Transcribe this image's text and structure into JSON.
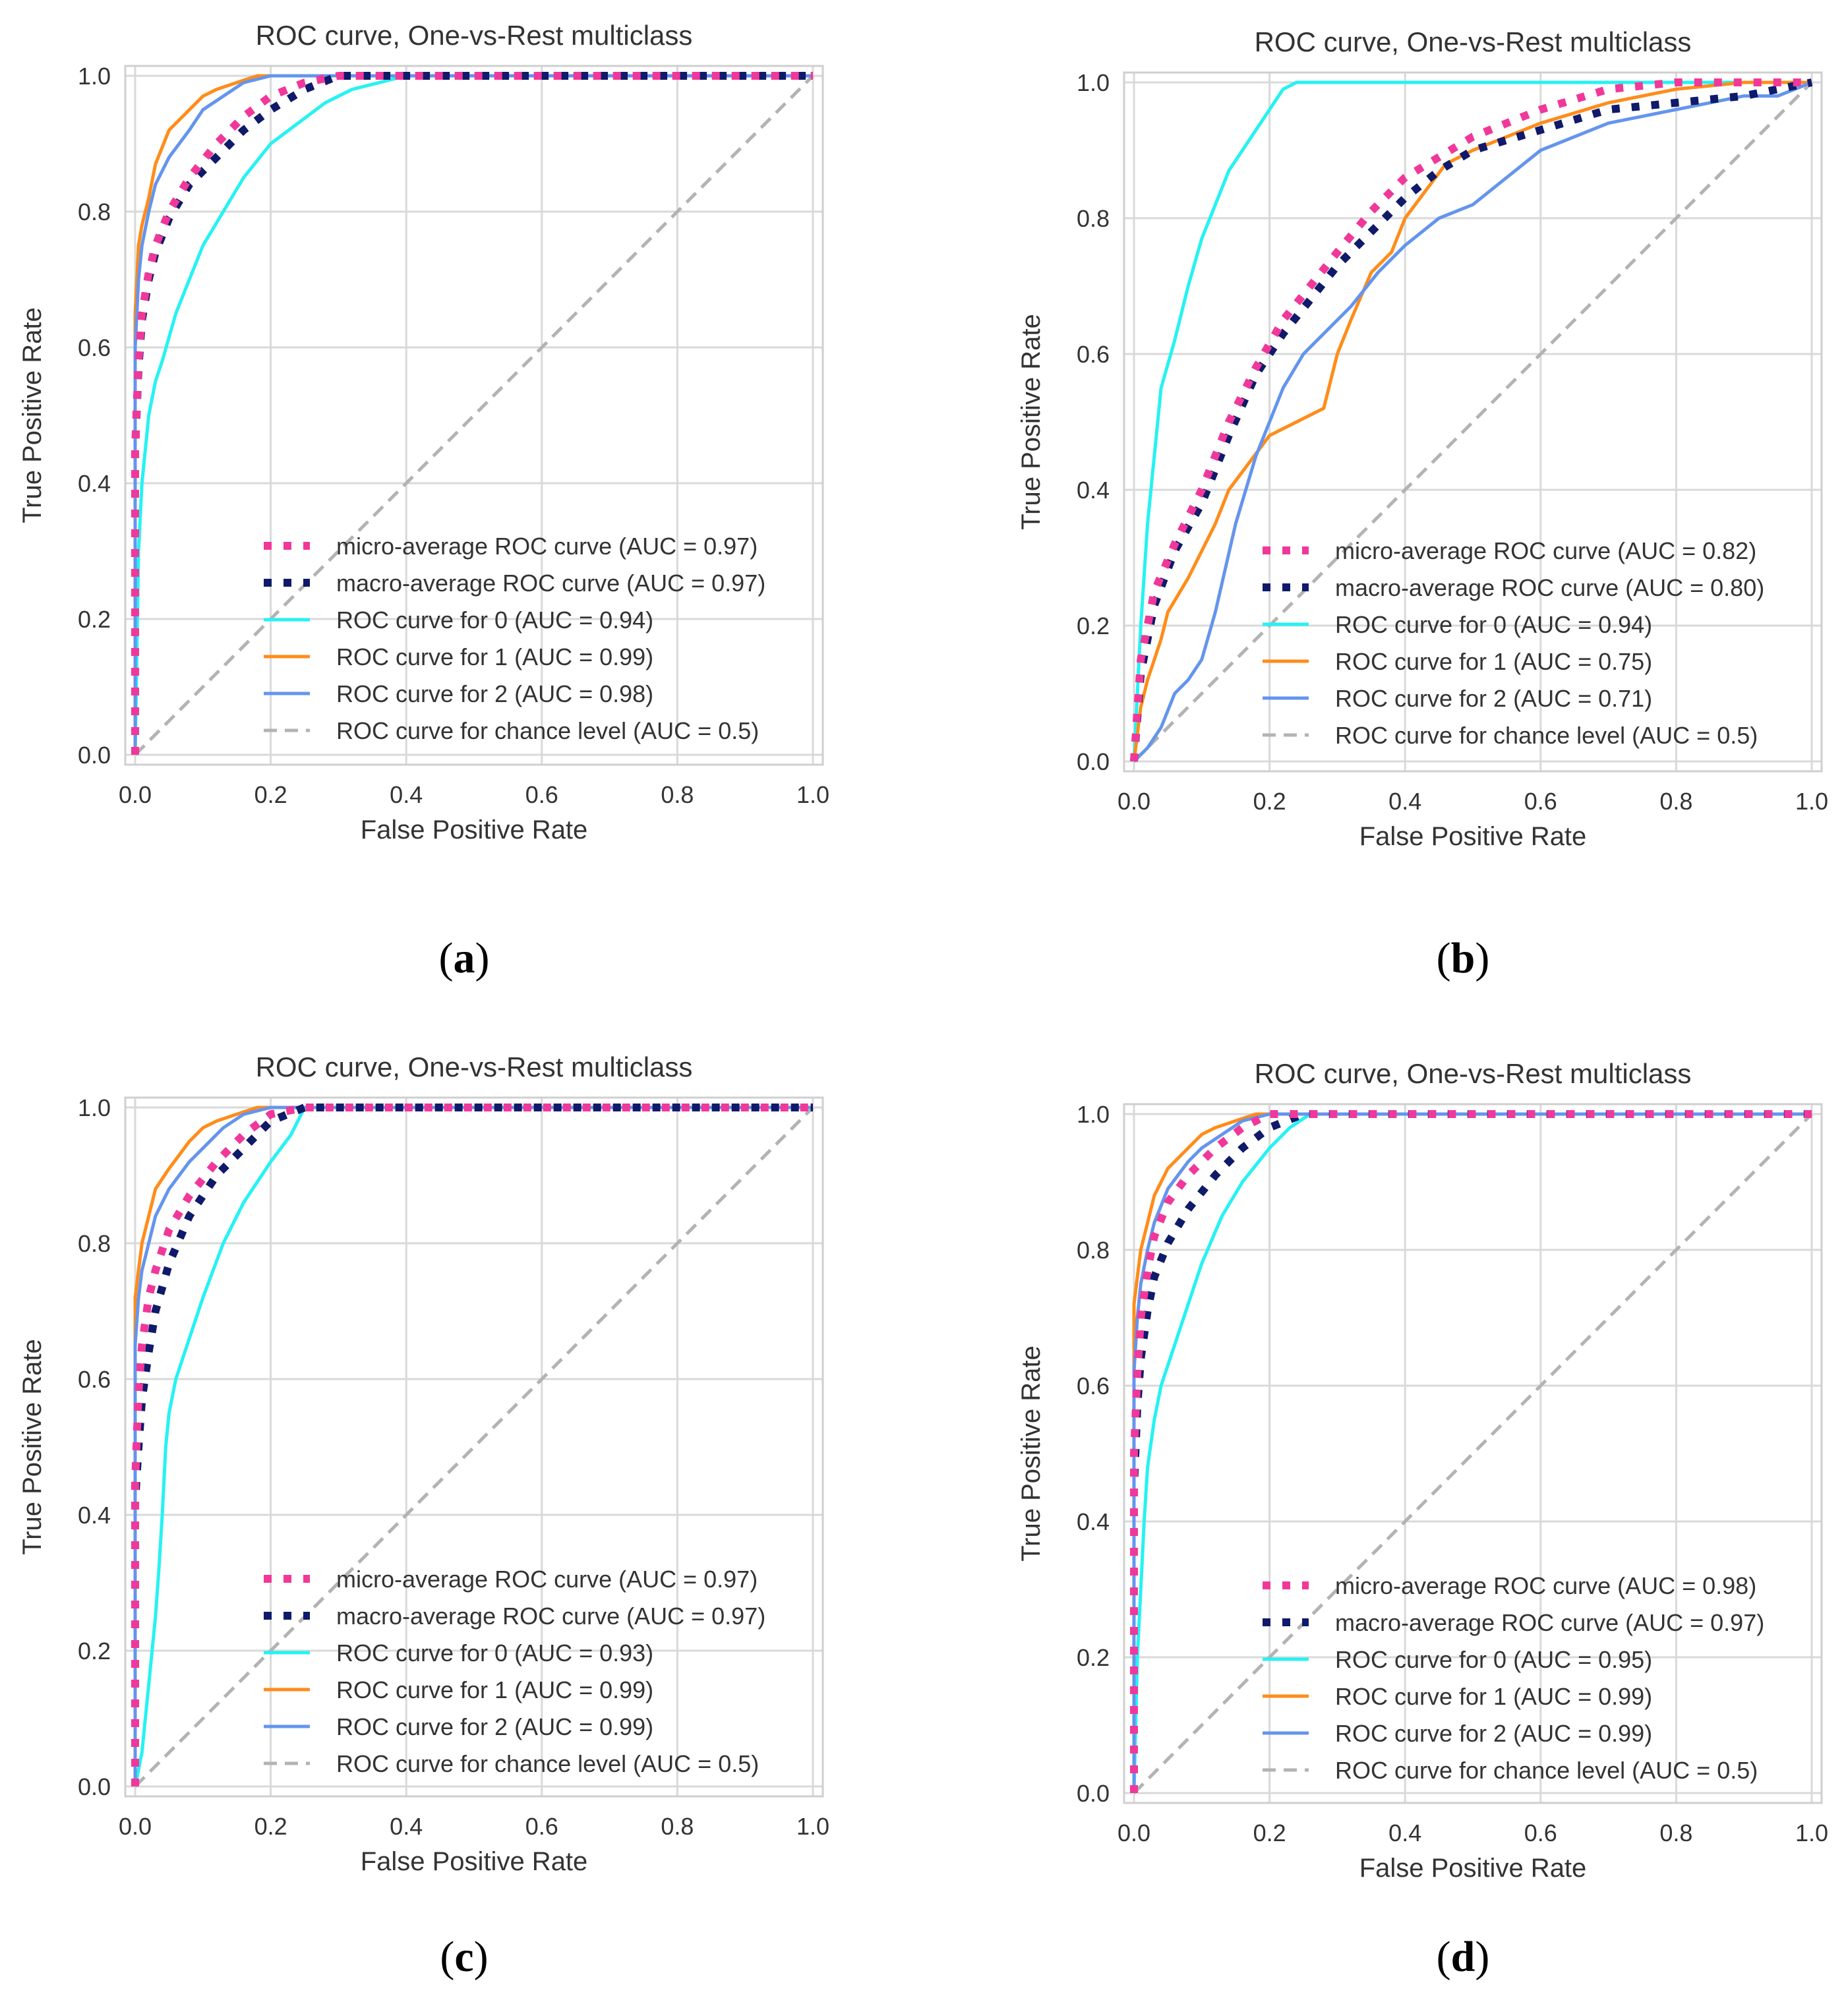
{
  "figure": {
    "colors": {
      "micro": "#f0389a",
      "macro": "#101a6a",
      "class0": "#26f2f2",
      "class1": "#ff8c1a",
      "class2": "#6495ed",
      "chance": "#b3b3b3",
      "grid": "#d9d9d9",
      "frame": "#cfcfcf",
      "text": "#333333"
    }
  },
  "chart_data": [
    {
      "panel_label": "(a)",
      "type": "line",
      "title": "ROC curve, One-vs-Rest multiclass",
      "xlabel": "False Positive Rate",
      "ylabel": "True Positive Rate",
      "xlim": [
        0,
        1
      ],
      "ylim": [
        0,
        1
      ],
      "xticks": [
        "0.0",
        "0.2",
        "0.4",
        "0.6",
        "0.8",
        "1.0"
      ],
      "yticks": [
        "0.0",
        "0.2",
        "0.4",
        "0.6",
        "0.8",
        "1.0"
      ],
      "grid": true,
      "legend": "lower-right",
      "series": [
        {
          "name": "micro-average ROC curve (AUC = 0.97)",
          "key": "micro",
          "style": "dotted",
          "x": [
            0,
            0,
            0.005,
            0.01,
            0.02,
            0.03,
            0.05,
            0.08,
            0.12,
            0.16,
            0.2,
            0.25,
            0.3,
            0.4,
            1
          ],
          "y": [
            0,
            0.45,
            0.58,
            0.65,
            0.71,
            0.75,
            0.8,
            0.85,
            0.9,
            0.94,
            0.97,
            0.99,
            1,
            1,
            1
          ]
        },
        {
          "name": "macro-average ROC curve (AUC = 0.97)",
          "key": "macro",
          "style": "dotted",
          "x": [
            0,
            0,
            0.005,
            0.01,
            0.02,
            0.03,
            0.05,
            0.08,
            0.12,
            0.16,
            0.2,
            0.25,
            0.3,
            0.4,
            1
          ],
          "y": [
            0,
            0.45,
            0.57,
            0.64,
            0.7,
            0.74,
            0.79,
            0.84,
            0.88,
            0.92,
            0.95,
            0.98,
            1,
            1,
            1
          ]
        },
        {
          "name": "ROC curve for 0 (AUC = 0.94)",
          "key": "class0",
          "style": "solid",
          "x": [
            0,
            0.005,
            0.01,
            0.02,
            0.03,
            0.04,
            0.06,
            0.08,
            0.1,
            0.13,
            0.16,
            0.2,
            0.24,
            0.28,
            0.32,
            0.36,
            0.4,
            1
          ],
          "y": [
            0,
            0.3,
            0.4,
            0.5,
            0.55,
            0.58,
            0.65,
            0.7,
            0.75,
            0.8,
            0.85,
            0.9,
            0.93,
            0.96,
            0.98,
            0.99,
            1,
            1
          ]
        },
        {
          "name": "ROC curve for 1 (AUC = 0.99)",
          "key": "class1",
          "style": "solid",
          "x": [
            0,
            0,
            0.005,
            0.01,
            0.02,
            0.03,
            0.05,
            0.08,
            0.1,
            0.12,
            0.15,
            0.18,
            0.2,
            0.25,
            1
          ],
          "y": [
            0,
            0.65,
            0.75,
            0.78,
            0.82,
            0.87,
            0.92,
            0.95,
            0.97,
            0.98,
            0.99,
            1,
            1,
            1,
            1
          ]
        },
        {
          "name": "ROC curve for 2 (AUC = 0.98)",
          "key": "class2",
          "style": "solid",
          "x": [
            0,
            0,
            0.005,
            0.01,
            0.02,
            0.03,
            0.05,
            0.08,
            0.1,
            0.13,
            0.16,
            0.2,
            0.22,
            1
          ],
          "y": [
            0,
            0.6,
            0.7,
            0.75,
            0.8,
            0.84,
            0.88,
            0.92,
            0.95,
            0.97,
            0.99,
            1,
            1,
            1
          ]
        },
        {
          "name": "ROC curve for chance level (AUC = 0.5)",
          "key": "chance",
          "style": "dashed",
          "x": [
            0,
            1
          ],
          "y": [
            0,
            1
          ]
        }
      ]
    },
    {
      "panel_label": "(b)",
      "type": "line",
      "title": "ROC curve, One-vs-Rest multiclass",
      "xlabel": "False Positive Rate",
      "ylabel": "True Positive Rate",
      "xlim": [
        0,
        1
      ],
      "ylim": [
        0,
        1
      ],
      "xticks": [
        "0.0",
        "0.2",
        "0.4",
        "0.6",
        "0.8",
        "1.0"
      ],
      "yticks": [
        "0.0",
        "0.2",
        "0.4",
        "0.6",
        "0.8",
        "1.0"
      ],
      "grid": true,
      "legend": "lower-right",
      "series": [
        {
          "name": "micro-average ROC curve (AUC = 0.82)",
          "key": "micro",
          "style": "dotted",
          "x": [
            0,
            0.01,
            0.03,
            0.06,
            0.1,
            0.14,
            0.18,
            0.22,
            0.26,
            0.3,
            0.35,
            0.4,
            0.45,
            0.5,
            0.6,
            0.7,
            0.8,
            1
          ],
          "y": [
            0,
            0.15,
            0.25,
            0.32,
            0.4,
            0.5,
            0.58,
            0.65,
            0.7,
            0.75,
            0.81,
            0.86,
            0.89,
            0.92,
            0.96,
            0.99,
            1,
            1
          ]
        },
        {
          "name": "macro-average ROC curve (AUC = 0.80)",
          "key": "macro",
          "style": "dotted",
          "x": [
            0,
            0.01,
            0.03,
            0.06,
            0.1,
            0.14,
            0.18,
            0.22,
            0.26,
            0.3,
            0.35,
            0.4,
            0.45,
            0.5,
            0.6,
            0.7,
            0.8,
            0.9,
            1
          ],
          "y": [
            0,
            0.13,
            0.23,
            0.31,
            0.38,
            0.48,
            0.57,
            0.63,
            0.68,
            0.73,
            0.78,
            0.83,
            0.87,
            0.9,
            0.93,
            0.96,
            0.97,
            0.98,
            1
          ]
        },
        {
          "name": "ROC curve for 0 (AUC = 0.94)",
          "key": "class0",
          "style": "solid",
          "x": [
            0,
            0.005,
            0.01,
            0.02,
            0.03,
            0.04,
            0.06,
            0.08,
            0.1,
            0.12,
            0.14,
            0.16,
            0.18,
            0.2,
            0.22,
            0.24,
            1
          ],
          "y": [
            0,
            0.1,
            0.2,
            0.35,
            0.45,
            0.55,
            0.62,
            0.7,
            0.77,
            0.82,
            0.87,
            0.9,
            0.93,
            0.96,
            0.99,
            1,
            1
          ]
        },
        {
          "name": "ROC curve for 1 (AUC = 0.75)",
          "key": "class1",
          "style": "solid",
          "x": [
            0,
            0.01,
            0.02,
            0.04,
            0.05,
            0.08,
            0.1,
            0.12,
            0.14,
            0.17,
            0.2,
            0.24,
            0.28,
            0.3,
            0.32,
            0.35,
            0.38,
            0.4,
            0.43,
            0.46,
            0.5,
            0.55,
            0.6,
            0.7,
            0.8,
            0.9,
            1
          ],
          "y": [
            0,
            0.08,
            0.12,
            0.18,
            0.22,
            0.27,
            0.31,
            0.35,
            0.4,
            0.44,
            0.48,
            0.5,
            0.52,
            0.6,
            0.65,
            0.72,
            0.75,
            0.8,
            0.84,
            0.88,
            0.9,
            0.92,
            0.94,
            0.97,
            0.99,
            1,
            1
          ]
        },
        {
          "name": "ROC curve for 2 (AUC = 0.71)",
          "key": "class2",
          "style": "solid",
          "x": [
            0,
            0.02,
            0.04,
            0.06,
            0.08,
            0.1,
            0.12,
            0.15,
            0.18,
            0.2,
            0.22,
            0.25,
            0.28,
            0.32,
            0.36,
            0.4,
            0.45,
            0.5,
            0.55,
            0.6,
            0.7,
            0.8,
            0.9,
            0.95,
            1
          ],
          "y": [
            0,
            0.02,
            0.05,
            0.1,
            0.12,
            0.15,
            0.22,
            0.35,
            0.45,
            0.5,
            0.55,
            0.6,
            0.63,
            0.67,
            0.72,
            0.76,
            0.8,
            0.82,
            0.86,
            0.9,
            0.94,
            0.96,
            0.98,
            0.98,
            1
          ]
        },
        {
          "name": "ROC curve for chance level (AUC = 0.5)",
          "key": "chance",
          "style": "dashed",
          "x": [
            0,
            1
          ],
          "y": [
            0,
            1
          ]
        }
      ]
    },
    {
      "panel_label": "(c)",
      "type": "line",
      "title": "ROC curve, One-vs-Rest multiclass",
      "xlabel": "False Positive Rate",
      "ylabel": "True Positive Rate",
      "xlim": [
        0,
        1
      ],
      "ylim": [
        0,
        1
      ],
      "xticks": [
        "0.0",
        "0.2",
        "0.4",
        "0.6",
        "0.8",
        "1.0"
      ],
      "yticks": [
        "0.0",
        "0.2",
        "0.4",
        "0.6",
        "0.8",
        "1.0"
      ],
      "grid": true,
      "legend": "lower-right",
      "series": [
        {
          "name": "micro-average ROC curve (AUC = 0.97)",
          "key": "micro",
          "style": "dotted",
          "x": [
            0,
            0,
            0.005,
            0.01,
            0.02,
            0.03,
            0.05,
            0.08,
            0.12,
            0.16,
            0.2,
            0.25,
            0.3,
            1
          ],
          "y": [
            0,
            0.45,
            0.58,
            0.65,
            0.72,
            0.76,
            0.82,
            0.87,
            0.92,
            0.96,
            0.99,
            1,
            1,
            1
          ]
        },
        {
          "name": "macro-average ROC curve (AUC = 0.97)",
          "key": "macro",
          "style": "dotted",
          "x": [
            0,
            0,
            0.005,
            0.01,
            0.02,
            0.03,
            0.05,
            0.08,
            0.12,
            0.16,
            0.2,
            0.25,
            0.3,
            1
          ],
          "y": [
            0,
            0.42,
            0.5,
            0.57,
            0.64,
            0.7,
            0.77,
            0.84,
            0.9,
            0.94,
            0.98,
            1,
            1,
            1
          ]
        },
        {
          "name": "ROC curve for 0 (AUC = 0.93)",
          "key": "class0",
          "style": "solid",
          "x": [
            0,
            0.01,
            0.015,
            0.02,
            0.025,
            0.03,
            0.035,
            0.04,
            0.045,
            0.05,
            0.06,
            0.08,
            0.1,
            0.13,
            0.16,
            0.2,
            0.23,
            0.25,
            1
          ],
          "y": [
            0,
            0.05,
            0.1,
            0.15,
            0.2,
            0.25,
            0.32,
            0.4,
            0.5,
            0.55,
            0.6,
            0.66,
            0.72,
            0.8,
            0.86,
            0.92,
            0.96,
            1,
            1
          ]
        },
        {
          "name": "ROC curve for 1 (AUC = 0.99)",
          "key": "class1",
          "style": "solid",
          "x": [
            0,
            0,
            0.005,
            0.01,
            0.02,
            0.03,
            0.05,
            0.08,
            0.1,
            0.12,
            0.15,
            0.18,
            0.2,
            1
          ],
          "y": [
            0,
            0.72,
            0.76,
            0.8,
            0.84,
            0.88,
            0.91,
            0.95,
            0.97,
            0.98,
            0.99,
            1,
            1,
            1
          ]
        },
        {
          "name": "ROC curve for 2 (AUC = 0.99)",
          "key": "class2",
          "style": "solid",
          "x": [
            0,
            0,
            0.005,
            0.01,
            0.02,
            0.03,
            0.05,
            0.08,
            0.1,
            0.13,
            0.16,
            0.2,
            0.22,
            1
          ],
          "y": [
            0,
            0.65,
            0.72,
            0.76,
            0.8,
            0.84,
            0.88,
            0.92,
            0.94,
            0.97,
            0.99,
            1,
            1,
            1
          ]
        },
        {
          "name": "ROC curve for chance level (AUC = 0.5)",
          "key": "chance",
          "style": "dashed",
          "x": [
            0,
            1
          ],
          "y": [
            0,
            1
          ]
        }
      ]
    },
    {
      "panel_label": "(d)",
      "type": "line",
      "title": "ROC curve, One-vs-Rest multiclass",
      "xlabel": "False Positive Rate",
      "ylabel": "True Positive Rate",
      "xlim": [
        0,
        1
      ],
      "ylim": [
        0,
        1
      ],
      "xticks": [
        "0.0",
        "0.2",
        "0.4",
        "0.6",
        "0.8",
        "1.0"
      ],
      "yticks": [
        "0.0",
        "0.2",
        "0.4",
        "0.6",
        "0.8",
        "1.0"
      ],
      "grid": true,
      "legend": "lower-right",
      "series": [
        {
          "name": "micro-average ROC curve (AUC = 0.98)",
          "key": "micro",
          "style": "dotted",
          "x": [
            0,
            0,
            0.005,
            0.01,
            0.02,
            0.03,
            0.05,
            0.08,
            0.12,
            0.16,
            0.2,
            0.25,
            1
          ],
          "y": [
            0,
            0.5,
            0.62,
            0.7,
            0.77,
            0.82,
            0.87,
            0.91,
            0.95,
            0.98,
            1,
            1,
            1
          ]
        },
        {
          "name": "macro-average ROC curve (AUC = 0.97)",
          "key": "macro",
          "style": "dotted",
          "x": [
            0,
            0,
            0.005,
            0.01,
            0.02,
            0.03,
            0.05,
            0.08,
            0.12,
            0.16,
            0.2,
            0.25,
            0.3,
            1
          ],
          "y": [
            0,
            0.45,
            0.57,
            0.64,
            0.71,
            0.76,
            0.81,
            0.86,
            0.91,
            0.95,
            0.98,
            1,
            1,
            1
          ]
        },
        {
          "name": "ROC curve for 0 (AUC = 0.95)",
          "key": "class0",
          "style": "solid",
          "x": [
            0,
            0.005,
            0.01,
            0.015,
            0.02,
            0.03,
            0.04,
            0.06,
            0.08,
            0.1,
            0.13,
            0.16,
            0.2,
            0.23,
            0.26,
            1
          ],
          "y": [
            0,
            0.2,
            0.3,
            0.4,
            0.48,
            0.55,
            0.6,
            0.66,
            0.72,
            0.78,
            0.85,
            0.9,
            0.95,
            0.98,
            1,
            1
          ]
        },
        {
          "name": "ROC curve for 1 (AUC = 0.99)",
          "key": "class1",
          "style": "solid",
          "x": [
            0,
            0,
            0.005,
            0.01,
            0.02,
            0.03,
            0.05,
            0.08,
            0.1,
            0.12,
            0.15,
            0.18,
            0.2,
            1
          ],
          "y": [
            0,
            0.72,
            0.76,
            0.8,
            0.84,
            0.88,
            0.92,
            0.95,
            0.97,
            0.98,
            0.99,
            1,
            1,
            1
          ]
        },
        {
          "name": "ROC curve for 2 (AUC = 0.99)",
          "key": "class2",
          "style": "solid",
          "x": [
            0,
            0,
            0.005,
            0.01,
            0.02,
            0.03,
            0.05,
            0.08,
            0.1,
            0.13,
            0.16,
            0.2,
            0.22,
            1
          ],
          "y": [
            0,
            0.62,
            0.7,
            0.75,
            0.8,
            0.84,
            0.89,
            0.93,
            0.95,
            0.97,
            0.99,
            1,
            1,
            1
          ]
        },
        {
          "name": "ROC curve for chance level (AUC = 0.5)",
          "key": "chance",
          "style": "dashed",
          "x": [
            0,
            1
          ],
          "y": [
            0,
            1
          ]
        }
      ]
    }
  ]
}
